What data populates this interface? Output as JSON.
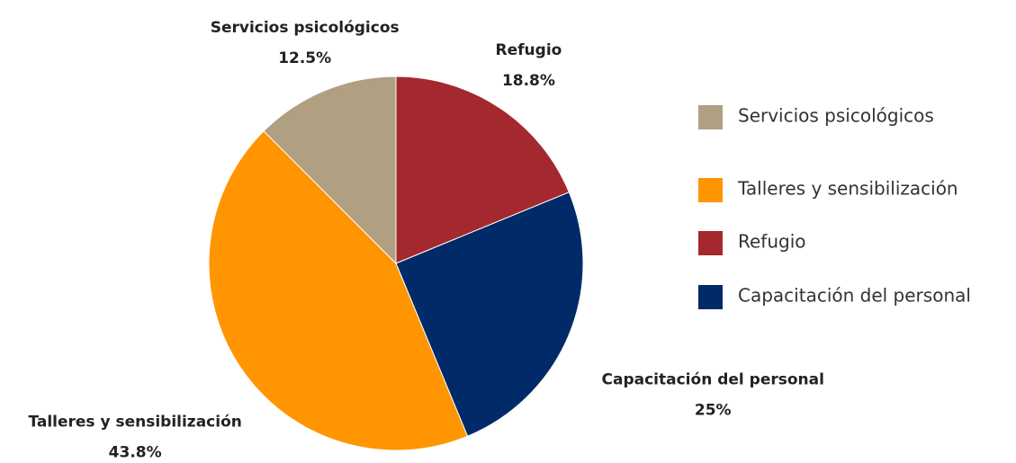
{
  "chart_data": {
    "type": "pie",
    "categories": [
      "Refugio",
      "Capacitación del personal",
      "Talleres y sensibilización",
      "Servicios psicológicos"
    ],
    "values": [
      18.8,
      25,
      43.8,
      12.5
    ],
    "value_labels": [
      "18.8%",
      "25%",
      "43.8%",
      "12.5%"
    ],
    "colors": [
      "#a3292f",
      "#002a68",
      "#ff9500",
      "#b19f82"
    ],
    "legend": "right",
    "legend_order": [
      3,
      2,
      0,
      1
    ]
  }
}
